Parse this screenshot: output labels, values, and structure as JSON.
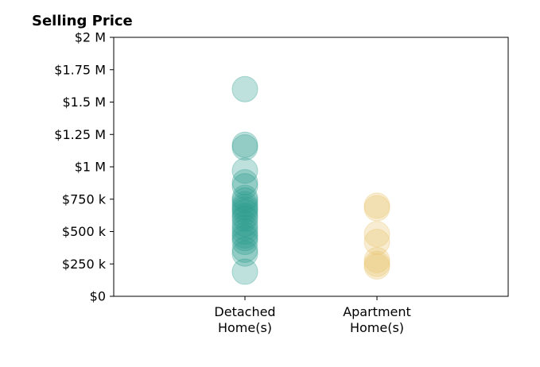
{
  "chart_data": {
    "type": "scatter",
    "title": "Selling Price",
    "categories": [
      "Detached\nHome(s)",
      "Apartment\nHome(s)"
    ],
    "ylim": [
      0,
      2000000
    ],
    "yticks": [
      {
        "value": 0,
        "label": "$0"
      },
      {
        "value": 250000,
        "label": "$250 k"
      },
      {
        "value": 500000,
        "label": "$500 k"
      },
      {
        "value": 750000,
        "label": "$750 k"
      },
      {
        "value": 1000000,
        "label": "$1 M"
      },
      {
        "value": 1250000,
        "label": "$1.25 M"
      },
      {
        "value": 1500000,
        "label": "$1.5 M"
      },
      {
        "value": 1750000,
        "label": "$1.75 M"
      },
      {
        "value": 2000000,
        "label": "$2 M"
      }
    ],
    "grid": false,
    "series": [
      {
        "category": "Detached\nHome(s)",
        "color": "#2a9d8f",
        "values": [
          1600000,
          1170000,
          1150000,
          970000,
          880000,
          850000,
          760000,
          740000,
          710000,
          690000,
          670000,
          650000,
          620000,
          600000,
          560000,
          530000,
          500000,
          470000,
          450000,
          420000,
          360000,
          330000,
          190000
        ]
      },
      {
        "category": "Apartment\nHome(s)",
        "color": "#e9c46a",
        "values": [
          700000,
          680000,
          480000,
          420000,
          280000,
          250000,
          230000
        ]
      }
    ]
  }
}
